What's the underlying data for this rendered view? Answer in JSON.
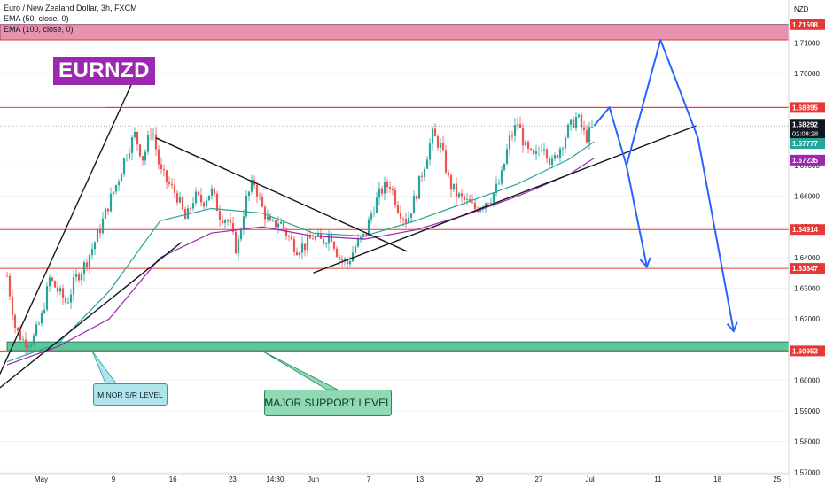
{
  "legend": {
    "symbol": "Euro / New Zealand Dollar, 3h, FXCM",
    "ema50": "EMA (50, close, 0)",
    "ema100": "EMA (100, close, 0)"
  },
  "currency": "NZD",
  "logo": "EURNZD",
  "annotations": {
    "minor": "MINOR S/R LEVEL",
    "major": "MAJOR SUPPORT LEVEL"
  },
  "colors": {
    "up_candle": "#26a69a",
    "down_candle": "#ef5350",
    "ema50": "#26a69a",
    "ema100": "#9c27b0",
    "level_line": "#e53935",
    "projection": "#2962ff",
    "resistance_zone": "#e991b0",
    "support_zone": "#5cc89a"
  },
  "chart_data": {
    "type": "candlestick",
    "title": "Euro / New Zealand Dollar, 3h, FXCM",
    "ylim": [
      1.5695,
      1.724
    ],
    "y_ticks": [
      "1.71000",
      "1.70000",
      "1.68000",
      "1.67000",
      "1.66000",
      "1.65000",
      "1.64000",
      "1.63000",
      "1.62000",
      "1.61000",
      "1.60000",
      "1.59000",
      "1.58000",
      "1.57000"
    ],
    "x_ticks": [
      {
        "label": "May",
        "t": 4
      },
      {
        "label": "9",
        "t": 12.5
      },
      {
        "label": "16",
        "t": 19.5
      },
      {
        "label": "23",
        "t": 26.5
      },
      {
        "label": "14:30",
        "t": 31.5
      },
      {
        "label": "Jun",
        "t": 36
      },
      {
        "label": "7",
        "t": 42.5
      },
      {
        "label": "13",
        "t": 48.5
      },
      {
        "label": "20",
        "t": 55.5
      },
      {
        "label": "27",
        "t": 62.5
      },
      {
        "label": "Jul",
        "t": 68.5
      },
      {
        "label": "11",
        "t": 76.5
      },
      {
        "label": "18",
        "t": 83.5
      },
      {
        "label": "25",
        "t": 90.5
      }
    ],
    "current": {
      "price": "1.68292",
      "timer": "02:08:28",
      "value": 1.68292
    },
    "levels": [
      {
        "label": "1.71598",
        "value": 1.71598
      },
      {
        "label": "1.68895",
        "value": 1.68895
      },
      {
        "label": "1.64914",
        "value": 1.64914
      },
      {
        "label": "1.63647",
        "value": 1.63647
      },
      {
        "label": "1.60953",
        "value": 1.60953
      }
    ],
    "ema_labels": [
      {
        "label": "1.67777",
        "value": 1.67777,
        "series": "ema50"
      },
      {
        "label": "1.67235",
        "value": 1.67235,
        "series": "ema100"
      }
    ],
    "resistance_zone": [
      1.711,
      1.716
    ],
    "support_zone": [
      1.6096,
      1.6125
    ],
    "close_path": [
      [
        0,
        1.634
      ],
      [
        1,
        1.6165
      ],
      [
        2,
        1.6125
      ],
      [
        3,
        1.613
      ],
      [
        4,
        1.62
      ],
      [
        5,
        1.633
      ],
      [
        6,
        1.629
      ],
      [
        7,
        1.625
      ],
      [
        8,
        1.633
      ],
      [
        9,
        1.637
      ],
      [
        10,
        1.643
      ],
      [
        11,
        1.65
      ],
      [
        12,
        1.658
      ],
      [
        13,
        1.665
      ],
      [
        14,
        1.674
      ],
      [
        15,
        1.68
      ],
      [
        16,
        1.672
      ],
      [
        17,
        1.683
      ],
      [
        18,
        1.668
      ],
      [
        19,
        1.664
      ],
      [
        20,
        1.66
      ],
      [
        21,
        1.652
      ],
      [
        22,
        1.66
      ],
      [
        23,
        1.658
      ],
      [
        24,
        1.662
      ],
      [
        25,
        1.654
      ],
      [
        26,
        1.652
      ],
      [
        27,
        1.642
      ],
      [
        28,
        1.658
      ],
      [
        29,
        1.665
      ],
      [
        30,
        1.656
      ],
      [
        31,
        1.65
      ],
      [
        32,
        1.652
      ],
      [
        33,
        1.647
      ],
      [
        34,
        1.643
      ],
      [
        35,
        1.644
      ],
      [
        36,
        1.647
      ],
      [
        37,
        1.645
      ],
      [
        38,
        1.648
      ],
      [
        39,
        1.64
      ],
      [
        40,
        1.638
      ],
      [
        41,
        1.644
      ],
      [
        42,
        1.647
      ],
      [
        43,
        1.656
      ],
      [
        44,
        1.662
      ],
      [
        45,
        1.664
      ],
      [
        46,
        1.656
      ],
      [
        47,
        1.652
      ],
      [
        48,
        1.66
      ],
      [
        49,
        1.67
      ],
      [
        50,
        1.68
      ],
      [
        51,
        1.676
      ],
      [
        52,
        1.664
      ],
      [
        53,
        1.66
      ],
      [
        54,
        1.658
      ],
      [
        55,
        1.656
      ],
      [
        56,
        1.658
      ],
      [
        57,
        1.66
      ],
      [
        58,
        1.665
      ],
      [
        59,
        1.678
      ],
      [
        60,
        1.684
      ],
      [
        61,
        1.675
      ],
      [
        62,
        1.672
      ],
      [
        63,
        1.678
      ],
      [
        64,
        1.67
      ],
      [
        65,
        1.676
      ],
      [
        66,
        1.682
      ],
      [
        67,
        1.686
      ],
      [
        68,
        1.679
      ],
      [
        69,
        1.6829
      ]
    ],
    "ema50_path": [
      [
        0,
        1.606
      ],
      [
        6,
        1.612
      ],
      [
        12,
        1.629
      ],
      [
        18,
        1.652
      ],
      [
        24,
        1.656
      ],
      [
        30,
        1.6545
      ],
      [
        36,
        1.648
      ],
      [
        42,
        1.647
      ],
      [
        48,
        1.652
      ],
      [
        54,
        1.658
      ],
      [
        60,
        1.664
      ],
      [
        66,
        1.672
      ],
      [
        69,
        1.6778
      ]
    ],
    "ema100_path": [
      [
        0,
        1.605
      ],
      [
        6,
        1.611
      ],
      [
        12,
        1.62
      ],
      [
        18,
        1.64
      ],
      [
        24,
        1.648
      ],
      [
        30,
        1.65
      ],
      [
        36,
        1.647
      ],
      [
        42,
        1.646
      ],
      [
        48,
        1.649
      ],
      [
        54,
        1.654
      ],
      [
        60,
        1.66
      ],
      [
        66,
        1.667
      ],
      [
        69,
        1.6724
      ]
    ],
    "trendlines": [
      [
        [
          -2,
          1.595
        ],
        [
          16,
          1.705
        ]
      ],
      [
        [
          -2,
          1.595
        ],
        [
          20.5,
          1.645
        ]
      ],
      [
        [
          17.5,
          1.679
        ],
        [
          47,
          1.642
        ]
      ],
      [
        [
          36,
          1.635
        ],
        [
          81,
          1.683
        ]
      ]
    ],
    "projection_path": [
      [
        69,
        1.683
      ],
      [
        70.8,
        1.689
      ],
      [
        72.8,
        1.67
      ],
      [
        76.8,
        1.711
      ],
      [
        81.2,
        1.679
      ],
      [
        85.4,
        1.616
      ]
    ],
    "projection_branch": [
      [
        72.8,
        1.67
      ],
      [
        75.2,
        1.637
      ]
    ],
    "arrowheads": [
      {
        "at": [
          75.2,
          1.637
        ],
        "from": [
          72.8,
          1.67
        ]
      },
      {
        "at": [
          85.4,
          1.616
        ],
        "from": [
          81.2,
          1.679
        ]
      }
    ],
    "callouts": [
      {
        "target": [
          10,
          1.6095
        ],
        "box": "minor"
      },
      {
        "target": [
          30,
          1.6095
        ],
        "box": "major"
      }
    ]
  }
}
